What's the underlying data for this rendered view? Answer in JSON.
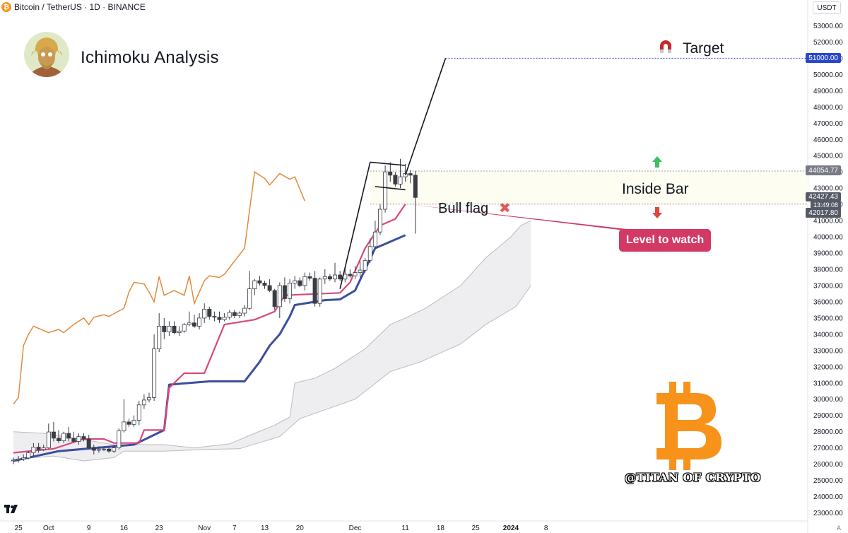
{
  "header": {
    "symbol": "Bitcoin / TetherUS · 1D · BINANCE",
    "coin_glyph": "₿"
  },
  "currency_button": "USDT",
  "title": "Ichimoku Analysis",
  "watermark": "@TITAN OF CRYPTO",
  "annotations": {
    "target": "Target",
    "inside_bar": "Inside Bar",
    "bull_flag": "Bull flag",
    "bull_flag_mark": "✖",
    "level_to_watch": "Level to watch"
  },
  "price_tags": {
    "target": "51000.00",
    "high": "44054.77",
    "last": "42427.43",
    "countdown": "13:49:08",
    "low": "42017.80"
  },
  "axis_footer": "A",
  "colors": {
    "conversion": "#d9487a",
    "base": "#3c4f9e",
    "lagging": "#e08a3c",
    "cloud": "#ebebee",
    "target_tag": "#2948c9",
    "inside_zone": "#fefdf2",
    "callout": "#d23a65"
  },
  "chart_data": {
    "type": "candlestick",
    "title": "Bitcoin / TetherUS · 1D · BINANCE",
    "y_axis": {
      "range": [
        22600,
        54000
      ],
      "ticks": [
        23000,
        24000,
        25000,
        26000,
        27000,
        28000,
        29000,
        30000,
        31000,
        32000,
        33000,
        34000,
        35000,
        36000,
        37000,
        38000,
        39000,
        40000,
        41000,
        42000,
        43000,
        44000,
        45000,
        46000,
        47000,
        48000,
        49000,
        50000,
        51000,
        52000,
        53000
      ]
    },
    "x_axis": {
      "start": "2023-09-24",
      "end": "2024-01-08",
      "ticks": [
        {
          "label": "25",
          "date": "2023-09-25"
        },
        {
          "label": "Oct",
          "date": "2023-10-01"
        },
        {
          "label": "9",
          "date": "2023-10-09"
        },
        {
          "label": "16",
          "date": "2023-10-16"
        },
        {
          "label": "23",
          "date": "2023-10-23"
        },
        {
          "label": "Nov",
          "date": "2023-11-01"
        },
        {
          "label": "7",
          "date": "2023-11-07"
        },
        {
          "label": "13",
          "date": "2023-11-13"
        },
        {
          "label": "20",
          "date": "2023-11-20"
        },
        {
          "label": "Dec",
          "date": "2023-12-01"
        },
        {
          "label": "11",
          "date": "2023-12-11"
        },
        {
          "label": "18",
          "date": "2023-12-18"
        },
        {
          "label": "25",
          "date": "2023-12-25"
        },
        {
          "label": "2024",
          "date": "2024-01-01"
        },
        {
          "label": "8",
          "date": "2024-01-08"
        }
      ]
    },
    "candles_start": "2023-09-24",
    "candles_ohlc": [
      [
        26200,
        26400,
        26000,
        26250
      ],
      [
        26250,
        26500,
        26100,
        26300
      ],
      [
        26300,
        26600,
        26200,
        26380
      ],
      [
        26380,
        26800,
        26300,
        26700
      ],
      [
        26700,
        27300,
        26500,
        27050
      ],
      [
        27050,
        27300,
        26700,
        26900
      ],
      [
        26900,
        27200,
        26800,
        27000
      ],
      [
        27000,
        28500,
        26950,
        27980
      ],
      [
        27980,
        28600,
        27400,
        27600
      ],
      [
        27600,
        28100,
        27300,
        27440
      ],
      [
        27440,
        28000,
        27300,
        27900
      ],
      [
        27900,
        28300,
        27400,
        27600
      ],
      [
        27600,
        28000,
        27350,
        27400
      ],
      [
        27400,
        27900,
        27200,
        27700
      ],
      [
        27700,
        27900,
        27400,
        27550
      ],
      [
        27550,
        27800,
        26900,
        27000
      ],
      [
        27000,
        27200,
        26600,
        26850
      ],
      [
        26850,
        27100,
        26700,
        26900
      ],
      [
        26900,
        27000,
        26800,
        26930
      ],
      [
        26930,
        27100,
        26700,
        26800
      ],
      [
        26800,
        27200,
        26700,
        27000
      ],
      [
        27000,
        28200,
        26900,
        28050
      ],
      [
        28050,
        30000,
        27950,
        28600
      ],
      [
        28600,
        28800,
        28300,
        28450
      ],
      [
        28450,
        29000,
        28300,
        28700
      ],
      [
        28700,
        29900,
        28400,
        29650
      ],
      [
        29650,
        30300,
        29400,
        29950
      ],
      [
        29950,
        30400,
        29800,
        30100
      ],
      [
        30100,
        34000,
        29900,
        33100
      ],
      [
        33100,
        35300,
        32900,
        34500
      ],
      [
        34500,
        35000,
        33700,
        34150
      ],
      [
        34150,
        34800,
        33900,
        34500
      ],
      [
        34500,
        34800,
        34000,
        34100
      ],
      [
        34100,
        34500,
        33900,
        34200
      ],
      [
        34200,
        34700,
        34100,
        34600
      ],
      [
        34600,
        35400,
        34500,
        34700
      ],
      [
        34700,
        35200,
        34400,
        34500
      ],
      [
        34500,
        35300,
        34300,
        35000
      ],
      [
        35000,
        35900,
        34700,
        35550
      ],
      [
        35550,
        35700,
        34900,
        35100
      ],
      [
        35100,
        35400,
        34800,
        35050
      ],
      [
        35050,
        35400,
        34700,
        34900
      ],
      [
        34900,
        35300,
        34800,
        35050
      ],
      [
        35050,
        35500,
        34900,
        35350
      ],
      [
        35350,
        35500,
        35000,
        35150
      ],
      [
        35150,
        35400,
        35000,
        35300
      ],
      [
        35300,
        35800,
        35100,
        35600
      ],
      [
        35600,
        37900,
        35500,
        36800
      ],
      [
        36800,
        37400,
        36400,
        37300
      ],
      [
        37300,
        37600,
        37000,
        37150
      ],
      [
        37150,
        37300,
        36800,
        37000
      ],
      [
        37000,
        37400,
        36600,
        36700
      ],
      [
        36700,
        36800,
        35500,
        35700
      ],
      [
        35700,
        37200,
        35000,
        37000
      ],
      [
        37000,
        37500,
        36000,
        36200
      ],
      [
        36200,
        37400,
        35900,
        37150
      ],
      [
        37150,
        37600,
        36800,
        37300
      ],
      [
        37300,
        37500,
        36900,
        37000
      ],
      [
        37000,
        37800,
        36700,
        37550
      ],
      [
        37550,
        37800,
        37300,
        37450
      ],
      [
        37450,
        37900,
        35700,
        35900
      ],
      [
        35900,
        37500,
        35700,
        37400
      ],
      [
        37400,
        38000,
        37100,
        37550
      ],
      [
        37550,
        37700,
        37300,
        37400
      ],
      [
        37400,
        38400,
        37200,
        37650
      ],
      [
        37650,
        37900,
        37300,
        37400
      ],
      [
        37400,
        38100,
        37200,
        37700
      ],
      [
        37700,
        38000,
        37500,
        37600
      ],
      [
        37600,
        38200,
        37400,
        37800
      ],
      [
        37800,
        38500,
        37500,
        37950
      ],
      [
        37950,
        38700,
        37800,
        38550
      ],
      [
        38550,
        39900,
        38400,
        39400
      ],
      [
        39400,
        41000,
        39300,
        40300
      ],
      [
        40300,
        42000,
        40100,
        41700
      ],
      [
        41700,
        44400,
        41500,
        44000
      ],
      [
        44000,
        44600,
        43400,
        43800
      ],
      [
        43800,
        44000,
        43100,
        43250
      ],
      [
        43250,
        44800,
        43000,
        43700
      ],
      [
        43700,
        44500,
        43400,
        43900
      ],
      [
        43900,
        44100,
        43300,
        43800
      ],
      [
        43800,
        44054.77,
        40200,
        42427.43
      ]
    ],
    "ichimoku": {
      "tenkan_conversion": [
        {
          "date": "2023-09-24",
          "value": 26700
        },
        {
          "date": "2023-10-02",
          "value": 26950
        },
        {
          "date": "2023-10-08",
          "value": 27550
        },
        {
          "date": "2023-10-12",
          "value": 27550
        },
        {
          "date": "2023-10-14",
          "value": 27300
        },
        {
          "date": "2023-10-19",
          "value": 27300
        },
        {
          "date": "2023-10-20",
          "value": 28100
        },
        {
          "date": "2023-10-24",
          "value": 28100
        },
        {
          "date": "2023-10-25",
          "value": 30700
        },
        {
          "date": "2023-10-28",
          "value": 31600
        },
        {
          "date": "2023-11-01",
          "value": 31600
        },
        {
          "date": "2023-11-05",
          "value": 34600
        },
        {
          "date": "2023-11-11",
          "value": 34900
        },
        {
          "date": "2023-11-15",
          "value": 35400
        },
        {
          "date": "2023-11-17",
          "value": 36400
        },
        {
          "date": "2023-11-28",
          "value": 36550
        },
        {
          "date": "2023-11-30",
          "value": 37200
        },
        {
          "date": "2023-12-03",
          "value": 39300
        },
        {
          "date": "2023-12-06",
          "value": 40700
        },
        {
          "date": "2023-12-09",
          "value": 41100
        },
        {
          "date": "2023-12-11",
          "value": 42017.8
        }
      ],
      "kijun_base": [
        {
          "date": "2023-09-24",
          "value": 26200
        },
        {
          "date": "2023-10-03",
          "value": 26800
        },
        {
          "date": "2023-10-18",
          "value": 27200
        },
        {
          "date": "2023-10-24",
          "value": 28100
        },
        {
          "date": "2023-10-25",
          "value": 30900
        },
        {
          "date": "2023-11-02",
          "value": 31100
        },
        {
          "date": "2023-11-09",
          "value": 31100
        },
        {
          "date": "2023-11-12",
          "value": 32300
        },
        {
          "date": "2023-11-14",
          "value": 33300
        },
        {
          "date": "2023-11-16",
          "value": 34000
        },
        {
          "date": "2023-11-18",
          "value": 35100
        },
        {
          "date": "2023-11-19",
          "value": 35800
        },
        {
          "date": "2023-11-25",
          "value": 36100
        },
        {
          "date": "2023-11-28",
          "value": 36150
        },
        {
          "date": "2023-12-01",
          "value": 36700
        },
        {
          "date": "2023-12-05",
          "value": 39300
        },
        {
          "date": "2023-12-11",
          "value": 40100
        }
      ],
      "chikou_lagging": [
        {
          "date": "2023-09-24",
          "value": 29700
        },
        {
          "date": "2023-09-25",
          "value": 30100
        },
        {
          "date": "2023-09-26",
          "value": 33300
        },
        {
          "date": "2023-09-27",
          "value": 34000
        },
        {
          "date": "2023-09-28",
          "value": 34500
        },
        {
          "date": "2023-10-01",
          "value": 34100
        },
        {
          "date": "2023-10-03",
          "value": 34300
        },
        {
          "date": "2023-10-04",
          "value": 34100
        },
        {
          "date": "2023-10-06",
          "value": 34600
        },
        {
          "date": "2023-10-08",
          "value": 35000
        },
        {
          "date": "2023-10-09",
          "value": 34600
        },
        {
          "date": "2023-10-10",
          "value": 35050
        },
        {
          "date": "2023-10-12",
          "value": 35200
        },
        {
          "date": "2023-10-13",
          "value": 35100
        },
        {
          "date": "2023-10-16",
          "value": 35600
        },
        {
          "date": "2023-10-17",
          "value": 36600
        },
        {
          "date": "2023-10-18",
          "value": 37200
        },
        {
          "date": "2023-10-20",
          "value": 37100
        },
        {
          "date": "2023-10-21",
          "value": 36600
        },
        {
          "date": "2023-10-22",
          "value": 36000
        },
        {
          "date": "2023-10-23",
          "value": 37550
        },
        {
          "date": "2023-10-24",
          "value": 36400
        },
        {
          "date": "2023-10-26",
          "value": 36700
        },
        {
          "date": "2023-10-28",
          "value": 36400
        },
        {
          "date": "2023-10-29",
          "value": 37600
        },
        {
          "date": "2023-10-30",
          "value": 35900
        },
        {
          "date": "2023-11-01",
          "value": 37300
        },
        {
          "date": "2023-11-02",
          "value": 37600
        },
        {
          "date": "2023-11-04",
          "value": 37500
        },
        {
          "date": "2023-11-05",
          "value": 37700
        },
        {
          "date": "2023-11-07",
          "value": 38500
        },
        {
          "date": "2023-11-09",
          "value": 39300
        },
        {
          "date": "2023-11-11",
          "value": 44000
        },
        {
          "date": "2023-11-13",
          "value": 43600
        },
        {
          "date": "2023-11-14",
          "value": 43200
        },
        {
          "date": "2023-11-16",
          "value": 43900
        },
        {
          "date": "2023-11-18",
          "value": 43550
        },
        {
          "date": "2023-11-19",
          "value": 43700
        },
        {
          "date": "2023-11-21",
          "value": 42200
        }
      ],
      "cloud_span_a": [
        {
          "date": "2023-09-24",
          "value": 28000
        },
        {
          "date": "2023-09-30",
          "value": 27900
        },
        {
          "date": "2023-10-08",
          "value": 27500
        },
        {
          "date": "2023-10-14",
          "value": 27200
        },
        {
          "date": "2023-10-24",
          "value": 27200
        },
        {
          "date": "2023-10-30",
          "value": 27000
        },
        {
          "date": "2023-11-06",
          "value": 27250
        },
        {
          "date": "2023-11-11",
          "value": 27900
        },
        {
          "date": "2023-11-15",
          "value": 28400
        },
        {
          "date": "2023-11-18",
          "value": 28900
        },
        {
          "date": "2023-11-19",
          "value": 31000
        },
        {
          "date": "2023-11-23",
          "value": 31300
        },
        {
          "date": "2023-11-27",
          "value": 31900
        },
        {
          "date": "2023-12-03",
          "value": 33100
        },
        {
          "date": "2023-12-08",
          "value": 34600
        },
        {
          "date": "2023-12-11",
          "value": 35000
        },
        {
          "date": "2023-12-15",
          "value": 35600
        },
        {
          "date": "2023-12-22",
          "value": 37000
        },
        {
          "date": "2023-12-27",
          "value": 38700
        },
        {
          "date": "2024-01-01",
          "value": 40000
        },
        {
          "date": "2024-01-03",
          "value": 40700
        },
        {
          "date": "2024-01-05",
          "value": 41000
        }
      ],
      "cloud_span_b": [
        {
          "date": "2023-09-24",
          "value": 26300
        },
        {
          "date": "2023-10-02",
          "value": 26500
        },
        {
          "date": "2023-10-08",
          "value": 26200
        },
        {
          "date": "2023-10-14",
          "value": 26400
        },
        {
          "date": "2023-10-16",
          "value": 26800
        },
        {
          "date": "2023-10-24",
          "value": 26800
        },
        {
          "date": "2023-11-01",
          "value": 26900
        },
        {
          "date": "2023-11-08",
          "value": 26950
        },
        {
          "date": "2023-11-16",
          "value": 27700
        },
        {
          "date": "2023-11-20",
          "value": 28800
        },
        {
          "date": "2023-12-01",
          "value": 30000
        },
        {
          "date": "2023-12-08",
          "value": 31700
        },
        {
          "date": "2023-12-14",
          "value": 32300
        },
        {
          "date": "2023-12-22",
          "value": 33400
        },
        {
          "date": "2023-12-27",
          "value": 34600
        },
        {
          "date": "2024-01-02",
          "value": 35700
        },
        {
          "date": "2024-01-05",
          "value": 37000
        }
      ]
    },
    "drawings": {
      "bull_flag_pole": [
        {
          "date": "2023-11-28",
          "value": 36800
        },
        {
          "date": "2023-12-04",
          "value": 44600
        }
      ],
      "flag_upper": [
        {
          "date": "2023-12-04",
          "value": 44600
        },
        {
          "date": "2023-12-11",
          "value": 44400
        }
      ],
      "flag_lower": [
        {
          "date": "2023-12-05",
          "value": 43100
        },
        {
          "date": "2023-12-11",
          "value": 42900
        }
      ],
      "target_line": [
        {
          "date": "2023-12-11",
          "value": 43800
        },
        {
          "date": "2023-12-19",
          "value": 51000
        }
      ],
      "target_level": 51000,
      "inside_bar_zone": {
        "from_date": "2023-12-04",
        "high": 44054.77,
        "low": 42017.8
      }
    },
    "last_price": 42427.43
  }
}
